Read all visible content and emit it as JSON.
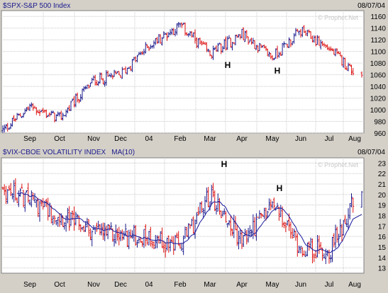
{
  "colors": {
    "frame": "#d4d0c8",
    "plot_bg": "#ffffff",
    "grid": "#c8c8c8",
    "up_bar": "#1a1a8c",
    "down_bar": "#dd1111",
    "ma_line": "#1a1a9c",
    "title_text": "#1a1a8c",
    "watermark": "#c8c8c8"
  },
  "chart_data": [
    {
      "type": "ohlc",
      "title": "$SPX-S&P 500 Index",
      "date": "08/07/04",
      "watermark": "© Prophet.Net",
      "ylim": [
        960,
        1170
      ],
      "y_ticks": [
        "1160",
        "1140",
        "1120",
        "1100",
        "1080",
        "1060",
        "1040",
        "1020",
        "1000",
        "980",
        "960"
      ],
      "x_tick_labels": [
        "Sep",
        "Oct",
        "Nov",
        "Dec",
        "04",
        "Feb",
        "Mar",
        "Apr",
        "May",
        "Jun",
        "Jul",
        "Aug"
      ],
      "annotations": [
        {
          "text": "H",
          "month": "Mar"
        },
        {
          "text": "H",
          "month": "May"
        }
      ],
      "series": [
        {
          "month_closes": [
            {
              "month": "Aug '03",
              "close": 965
            },
            {
              "month": "Sep",
              "close": 1005
            },
            {
              "month": "Oct",
              "close": 985
            },
            {
              "month": "Nov",
              "close": 1050
            },
            {
              "month": "Dec",
              "close": 1060
            },
            {
              "month": "04",
              "close": 1110
            },
            {
              "month": "Feb",
              "close": 1145
            },
            {
              "month": "Mar",
              "close": 1095
            },
            {
              "month": "Apr",
              "close": 1130
            },
            {
              "month": "May",
              "close": 1090
            },
            {
              "month": "Jun",
              "close": 1135
            },
            {
              "month": "Jul",
              "close": 1105
            },
            {
              "month": "Aug",
              "close": 1063
            }
          ]
        }
      ]
    },
    {
      "type": "ohlc",
      "title": "$VIX-CBOE VOLATILITY INDEX",
      "overlay_label": "MA(10)",
      "date": "08/07/04",
      "watermark": "© Prophet.Net",
      "ylim": [
        12.5,
        23.5
      ],
      "y_ticks": [
        "23",
        "22",
        "21",
        "20",
        "19",
        "18",
        "17",
        "16",
        "15",
        "14",
        "13"
      ],
      "x_tick_labels": [
        "Sep",
        "Oct",
        "Nov",
        "Dec",
        "04",
        "Feb",
        "Mar",
        "Apr",
        "May",
        "Jun",
        "Jul",
        "Aug"
      ],
      "annotations": [
        {
          "text": "H",
          "month": "Mar"
        },
        {
          "text": "H",
          "month": "May"
        }
      ],
      "series": [
        {
          "month_closes": [
            {
              "month": "Aug '03",
              "close": 20.5
            },
            {
              "month": "Sep",
              "close": 19.5
            },
            {
              "month": "Oct",
              "close": 18.0
            },
            {
              "month": "Nov",
              "close": 16.5
            },
            {
              "month": "Dec",
              "close": 16.0
            },
            {
              "month": "04",
              "close": 16.0
            },
            {
              "month": "Feb",
              "close": 15.0
            },
            {
              "month": "Mar",
              "close": 20.0
            },
            {
              "month": "Apr",
              "close": 15.5
            },
            {
              "month": "May",
              "close": 19.0
            },
            {
              "month": "Jun",
              "close": 15.0
            },
            {
              "month": "Jul",
              "close": 14.5
            },
            {
              "month": "Aug",
              "close": 19.5
            }
          ]
        }
      ]
    }
  ]
}
